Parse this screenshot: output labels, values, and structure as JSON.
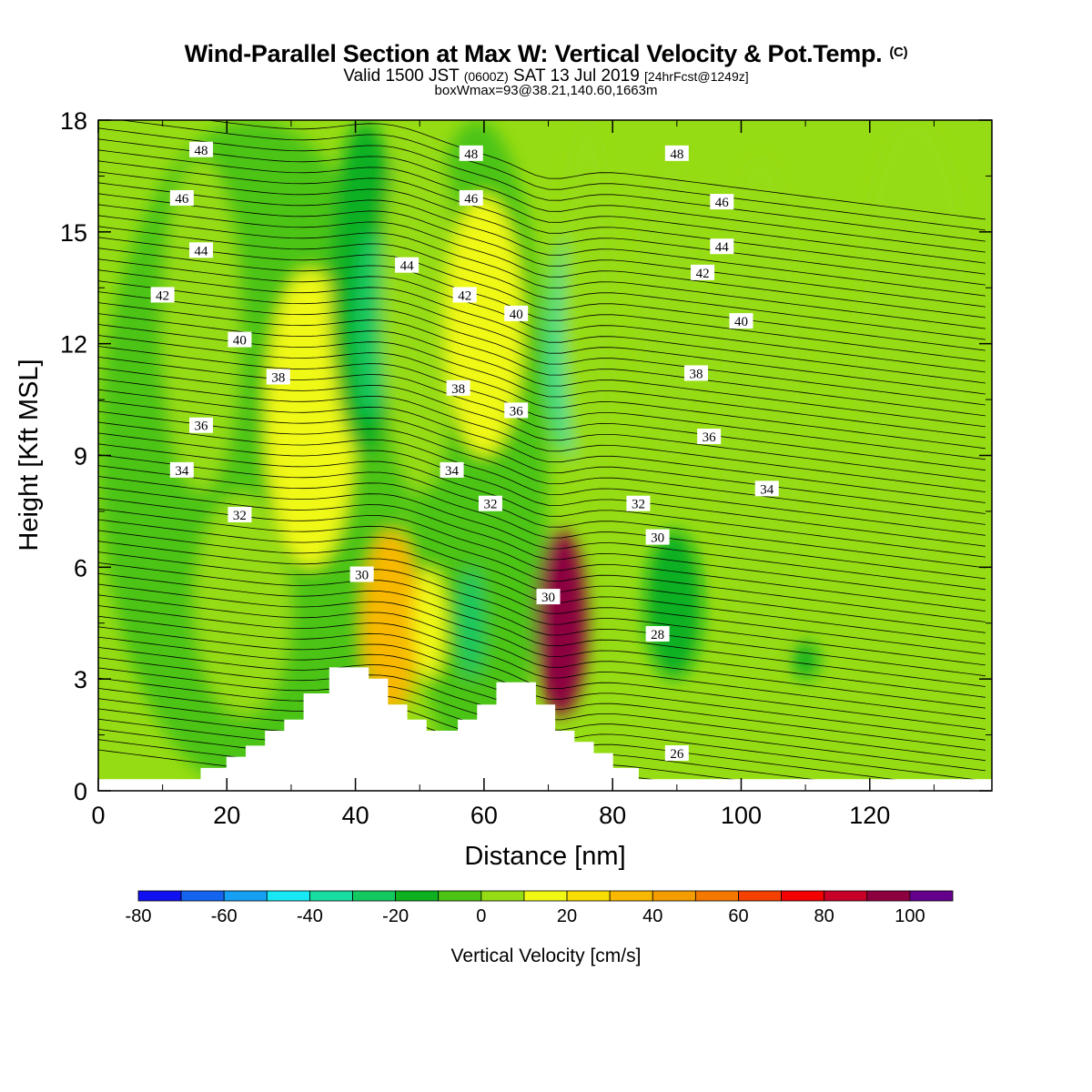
{
  "title": {
    "main": "Wind-Parallel Section at Max W: Vertical Velocity & Pot.Temp.",
    "copyright": "(C)",
    "valid_a": "Valid 1500 JST",
    "valid_utc": "(0600Z)",
    "valid_b": "SAT 13 Jul 2019",
    "forecast": "[24hrFcst@1249z]",
    "box": "boxWmax=93@38.21,140.60,1663m"
  },
  "chart_data": {
    "type": "heatmap",
    "xlabel": "Distance [nm]",
    "ylabel": "Height [Kft MSL]",
    "xlim": [
      0,
      139
    ],
    "ylim": [
      0,
      18
    ],
    "x_ticks": [
      0,
      20,
      40,
      60,
      80,
      100,
      120
    ],
    "y_ticks": [
      0,
      3,
      6,
      9,
      12,
      15,
      18
    ],
    "colorbar": {
      "title": "Vertical Velocity [cm/s]",
      "levels": [
        -80,
        -70,
        -60,
        -50,
        -40,
        -30,
        -20,
        -10,
        0,
        10,
        20,
        30,
        40,
        50,
        60,
        70,
        80,
        90,
        100,
        110
      ],
      "colors": [
        "#1010f0",
        "#1464f0",
        "#16a0f4",
        "#18e8f4",
        "#18dca0",
        "#14c860",
        "#0eb020",
        "#4cc414",
        "#96dc14",
        "#f0f814",
        "#f8dc00",
        "#f8b800",
        "#f49c00",
        "#f47800",
        "#f44000",
        "#f40000",
        "#c80028",
        "#8c0040",
        "#64008c"
      ],
      "labels": [
        -80,
        -60,
        -40,
        -20,
        0,
        20,
        40,
        60,
        80,
        100
      ]
    },
    "terrain": [
      [
        0,
        0.3
      ],
      [
        16,
        0.3
      ],
      [
        16,
        0.6
      ],
      [
        20,
        0.6
      ],
      [
        20,
        0.9
      ],
      [
        23,
        0.9
      ],
      [
        23,
        1.2
      ],
      [
        26,
        1.2
      ],
      [
        26,
        1.6
      ],
      [
        29,
        1.6
      ],
      [
        29,
        1.9
      ],
      [
        32,
        1.9
      ],
      [
        32,
        2.6
      ],
      [
        36,
        2.6
      ],
      [
        36,
        3.3
      ],
      [
        42,
        3.3
      ],
      [
        42,
        3.0
      ],
      [
        45,
        3.0
      ],
      [
        45,
        2.3
      ],
      [
        48,
        2.3
      ],
      [
        48,
        1.9
      ],
      [
        51,
        1.9
      ],
      [
        51,
        1.6
      ],
      [
        56,
        1.6
      ],
      [
        56,
        1.9
      ],
      [
        59,
        1.9
      ],
      [
        59,
        2.3
      ],
      [
        62,
        2.3
      ],
      [
        62,
        2.9
      ],
      [
        68,
        2.9
      ],
      [
        68,
        2.3
      ],
      [
        71,
        2.3
      ],
      [
        71,
        1.6
      ],
      [
        74,
        1.6
      ],
      [
        74,
        1.3
      ],
      [
        77,
        1.3
      ],
      [
        77,
        1.0
      ],
      [
        80,
        1.0
      ],
      [
        80,
        0.6
      ],
      [
        84,
        0.6
      ],
      [
        84,
        0.3
      ],
      [
        139,
        0.3
      ]
    ],
    "w_field": [
      {
        "x": [
          0,
          48
        ],
        "y": [
          0,
          18
        ],
        "v": -5
      },
      {
        "x": [
          48,
          70
        ],
        "y": [
          0,
          18
        ],
        "v": -5
      },
      {
        "x": [
          10,
          22
        ],
        "y": [
          8,
          17
        ],
        "v": 5
      },
      {
        "x": [
          15,
          30
        ],
        "y": [
          2,
          8
        ],
        "v": 5
      },
      {
        "x": [
          26,
          40
        ],
        "y": [
          6,
          14
        ],
        "v": 15
      },
      {
        "x": [
          36,
          47
        ],
        "y": [
          9,
          18
        ],
        "v": -15
      },
      {
        "x": [
          40,
          45
        ],
        "y": [
          10,
          15
        ],
        "v": -30
      },
      {
        "x": [
          44,
          56
        ],
        "y": [
          8,
          18
        ],
        "v": 5
      },
      {
        "x": [
          54,
          66
        ],
        "y": [
          9,
          16
        ],
        "v": 15
      },
      {
        "x": [
          41,
          50
        ],
        "y": [
          2,
          7
        ],
        "v": 30
      },
      {
        "x": [
          49,
          54
        ],
        "y": [
          3,
          6
        ],
        "v": 15
      },
      {
        "x": [
          56,
          60
        ],
        "y": [
          3,
          6
        ],
        "v": -25
      },
      {
        "x": [
          68,
          76
        ],
        "y": [
          2,
          7
        ],
        "v": 90
      },
      {
        "x": [
          70,
          76
        ],
        "y": [
          9,
          15
        ],
        "v": -35
      },
      {
        "x": [
          72,
          80
        ],
        "y": [
          8,
          18
        ],
        "v": 5
      },
      {
        "x": [
          84,
          94
        ],
        "y": [
          9,
          17
        ],
        "v": 5
      },
      {
        "x": [
          96,
          110
        ],
        "y": [
          3,
          17
        ],
        "v": 5
      },
      {
        "x": [
          118,
          136
        ],
        "y": [
          6,
          18
        ],
        "v": 5
      },
      {
        "x": [
          85,
          94
        ],
        "y": [
          3,
          7
        ],
        "v": -15
      },
      {
        "x": [
          108,
          112
        ],
        "y": [
          3,
          4
        ],
        "v": -15
      }
    ],
    "theta_levels": [
      26,
      28,
      30,
      32,
      34,
      36,
      38,
      40,
      42,
      44,
      46,
      48
    ],
    "theta_labels": [
      {
        "v": "48",
        "x": 16,
        "y": 17.2
      },
      {
        "v": "48",
        "x": 58,
        "y": 17.1
      },
      {
        "v": "48",
        "x": 90,
        "y": 17.1
      },
      {
        "v": "46",
        "x": 13,
        "y": 15.9
      },
      {
        "v": "46",
        "x": 58,
        "y": 15.9
      },
      {
        "v": "46",
        "x": 97,
        "y": 15.8
      },
      {
        "v": "44",
        "x": 16,
        "y": 14.5
      },
      {
        "v": "44",
        "x": 48,
        "y": 14.1
      },
      {
        "v": "44",
        "x": 97,
        "y": 14.6
      },
      {
        "v": "42",
        "x": 10,
        "y": 13.3
      },
      {
        "v": "42",
        "x": 57,
        "y": 13.3
      },
      {
        "v": "42",
        "x": 94,
        "y": 13.9
      },
      {
        "v": "40",
        "x": 22,
        "y": 12.1
      },
      {
        "v": "40",
        "x": 65,
        "y": 12.8
      },
      {
        "v": "40",
        "x": 100,
        "y": 12.6
      },
      {
        "v": "38",
        "x": 28,
        "y": 11.1
      },
      {
        "v": "38",
        "x": 56,
        "y": 10.8
      },
      {
        "v": "38",
        "x": 93,
        "y": 11.2
      },
      {
        "v": "36",
        "x": 16,
        "y": 9.8
      },
      {
        "v": "36",
        "x": 65,
        "y": 10.2
      },
      {
        "v": "36",
        "x": 95,
        "y": 9.5
      },
      {
        "v": "34",
        "x": 13,
        "y": 8.6
      },
      {
        "v": "34",
        "x": 55,
        "y": 8.6
      },
      {
        "v": "34",
        "x": 104,
        "y": 8.1
      },
      {
        "v": "32",
        "x": 22,
        "y": 7.4
      },
      {
        "v": "32",
        "x": 61,
        "y": 7.7
      },
      {
        "v": "32",
        "x": 84,
        "y": 7.7
      },
      {
        "v": "30",
        "x": 41,
        "y": 5.8
      },
      {
        "v": "30",
        "x": 70,
        "y": 5.2
      },
      {
        "v": "30",
        "x": 87,
        "y": 6.8
      },
      {
        "v": "28",
        "x": 87,
        "y": 4.2
      },
      {
        "v": "26",
        "x": 90,
        "y": 1.0
      }
    ]
  }
}
